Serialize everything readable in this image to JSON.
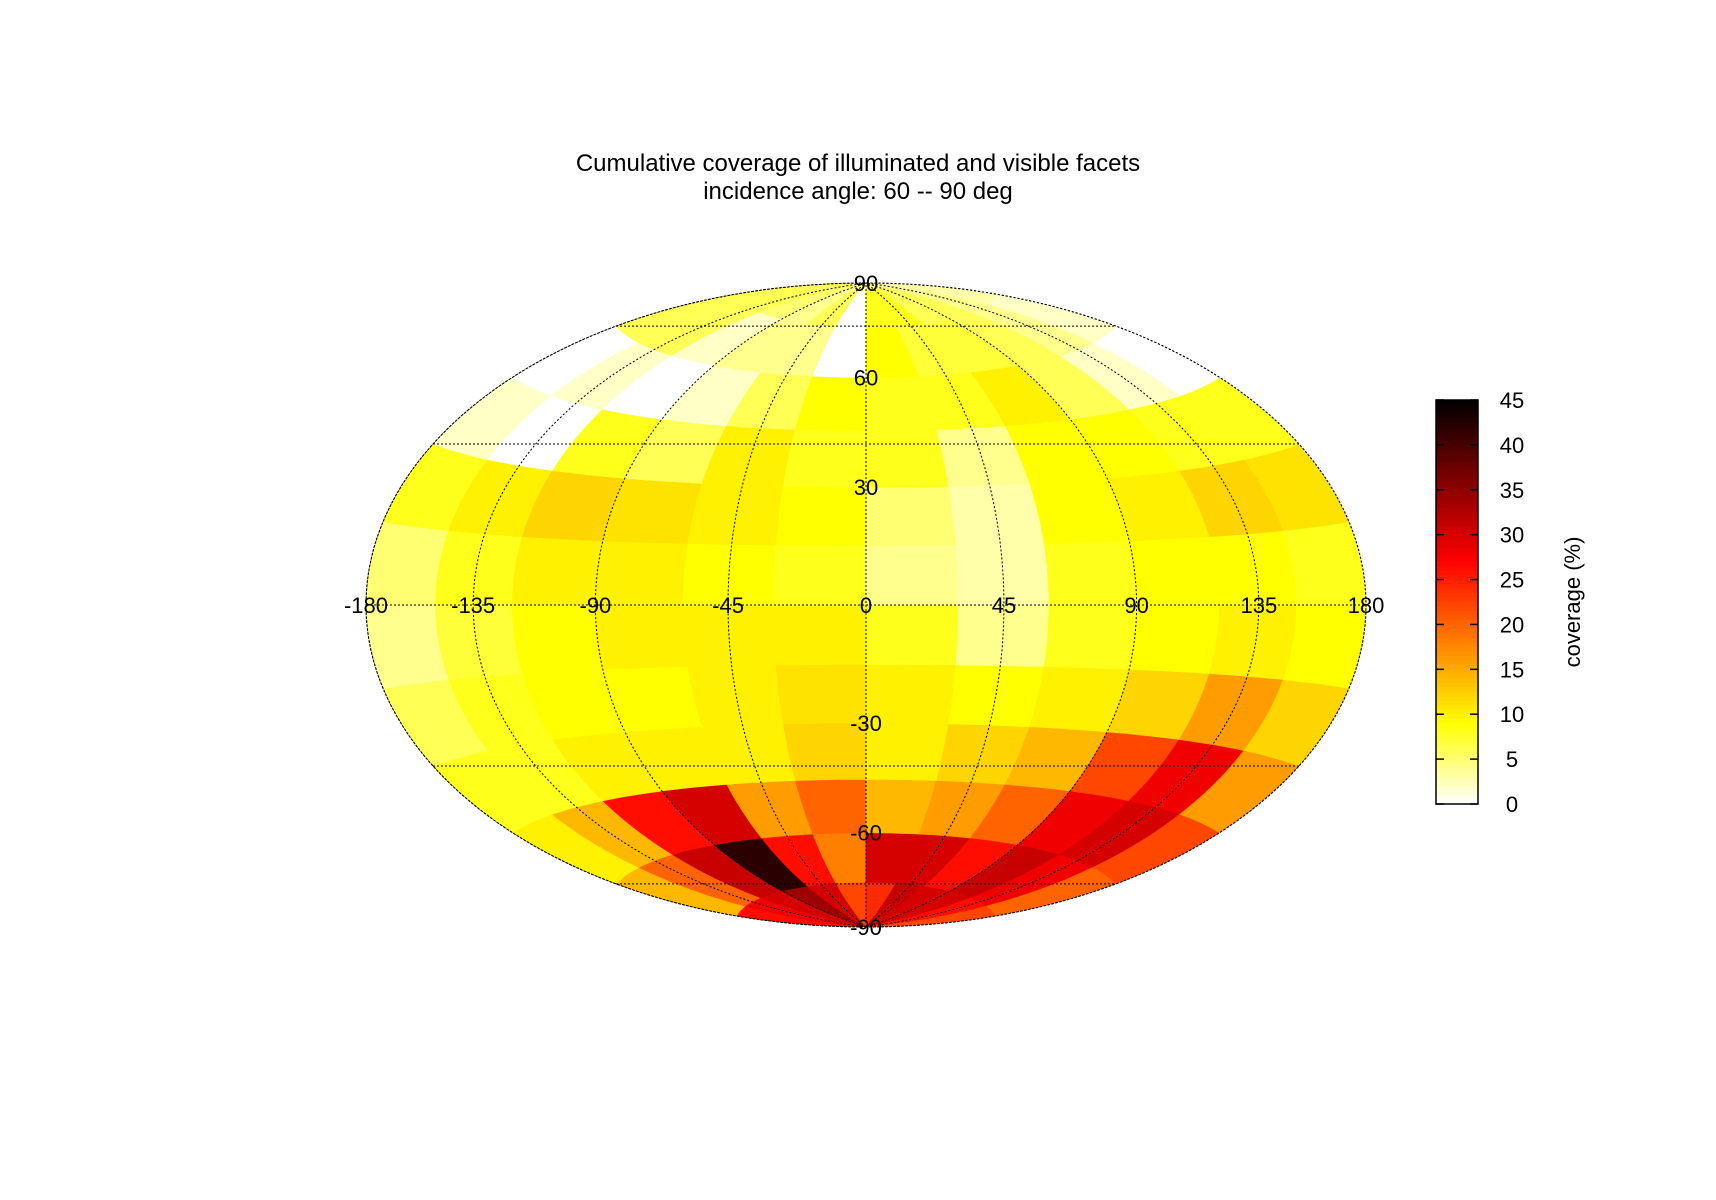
{
  "chart_data": {
    "type": "heatmap",
    "projection": "hammer-aitoff",
    "title": "Cumulative coverage of illuminated and visible facets",
    "subtitle": "incidence angle: 60 -- 90 deg",
    "longitude_ticks": [
      "-180",
      "-135",
      "-90",
      "-45",
      "0",
      "45",
      "90",
      "135",
      "180"
    ],
    "latitude_ticks": [
      "90",
      "60",
      "30",
      "-30",
      "-60",
      "-90"
    ],
    "graticule_longitudes": [
      -180,
      -135,
      -90,
      -45,
      0,
      45,
      90,
      135,
      180
    ],
    "graticule_latitudes": [
      60,
      30,
      -30,
      -60
    ],
    "grid": true,
    "colorbar": {
      "label": "coverage (%)",
      "ticks": [
        "0",
        "5",
        "10",
        "15",
        "20",
        "25",
        "30",
        "35",
        "40",
        "45"
      ],
      "range": [
        0,
        45
      ],
      "colormap": [
        "#ffffff",
        "#ffff00",
        "#ff8000",
        "#ff0000",
        "#800000",
        "#000000"
      ],
      "placement": "right"
    },
    "lat_bands": [
      -90,
      -75,
      -60,
      -45,
      -30,
      -15,
      0,
      15,
      30,
      45,
      60,
      75,
      90
    ],
    "lon_edges": [
      -180,
      -150,
      -120,
      -90,
      -60,
      -30,
      0,
      30,
      60,
      90,
      120,
      150,
      180
    ],
    "values": [
      [
        26,
        28,
        30,
        34,
        30,
        22,
        24,
        31,
        30,
        30,
        26,
        22
      ],
      [
        14,
        20,
        31,
        42,
        26,
        18,
        30,
        30,
        26,
        31,
        28,
        20
      ],
      [
        10,
        14,
        26,
        30,
        16,
        20,
        14,
        16,
        20,
        28,
        30,
        22
      ],
      [
        8,
        8,
        10,
        10,
        10,
        12,
        10,
        12,
        14,
        22,
        28,
        16
      ],
      [
        6,
        8,
        9,
        9,
        10,
        11,
        10,
        9,
        10,
        12,
        16,
        12
      ],
      [
        4,
        7,
        9,
        10,
        10,
        10,
        8,
        4,
        8,
        9,
        10,
        9
      ],
      [
        5,
        8,
        10,
        10,
        9,
        8,
        4,
        3,
        8,
        9,
        9,
        8
      ],
      [
        8,
        10,
        12,
        11,
        10,
        9,
        5,
        3,
        9,
        10,
        12,
        11
      ],
      [
        2,
        0,
        8,
        6,
        10,
        8,
        8,
        4,
        9,
        9,
        8,
        8
      ],
      [
        0,
        2,
        0,
        2,
        6,
        9,
        8,
        8,
        10,
        6,
        2,
        0
      ],
      [
        6,
        6,
        2,
        4,
        4,
        0,
        9,
        7,
        7,
        6,
        4,
        2
      ],
      [
        6,
        6,
        5,
        4,
        6,
        0,
        8,
        8,
        6,
        6,
        4,
        3
      ]
    ]
  }
}
